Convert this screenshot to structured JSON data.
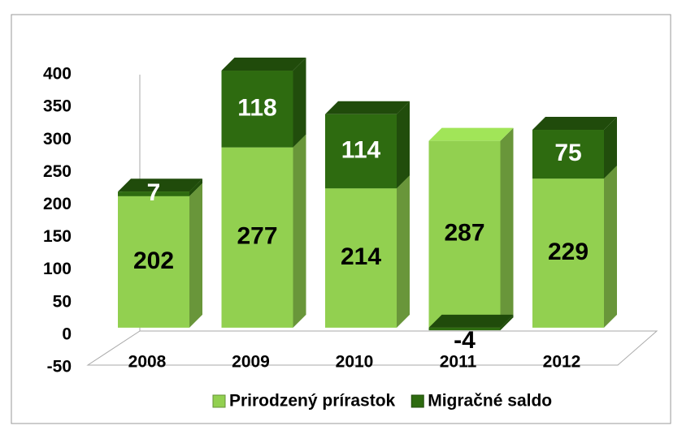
{
  "chart_data": {
    "type": "bar3d_stacked",
    "categories": [
      "2008",
      "2009",
      "2010",
      "2011",
      "2012"
    ],
    "series": [
      {
        "name": "Prirodzený prírastok",
        "color": "#92d050",
        "values": [
          202,
          277,
          214,
          287,
          229
        ]
      },
      {
        "name": "Migračné saldo",
        "color": "#2e6b10",
        "values": [
          7,
          118,
          114,
          -4,
          75
        ]
      }
    ],
    "ylim": [
      -50,
      400
    ],
    "yticks": [
      -50,
      0,
      50,
      100,
      150,
      200,
      250,
      300,
      350,
      400
    ]
  }
}
